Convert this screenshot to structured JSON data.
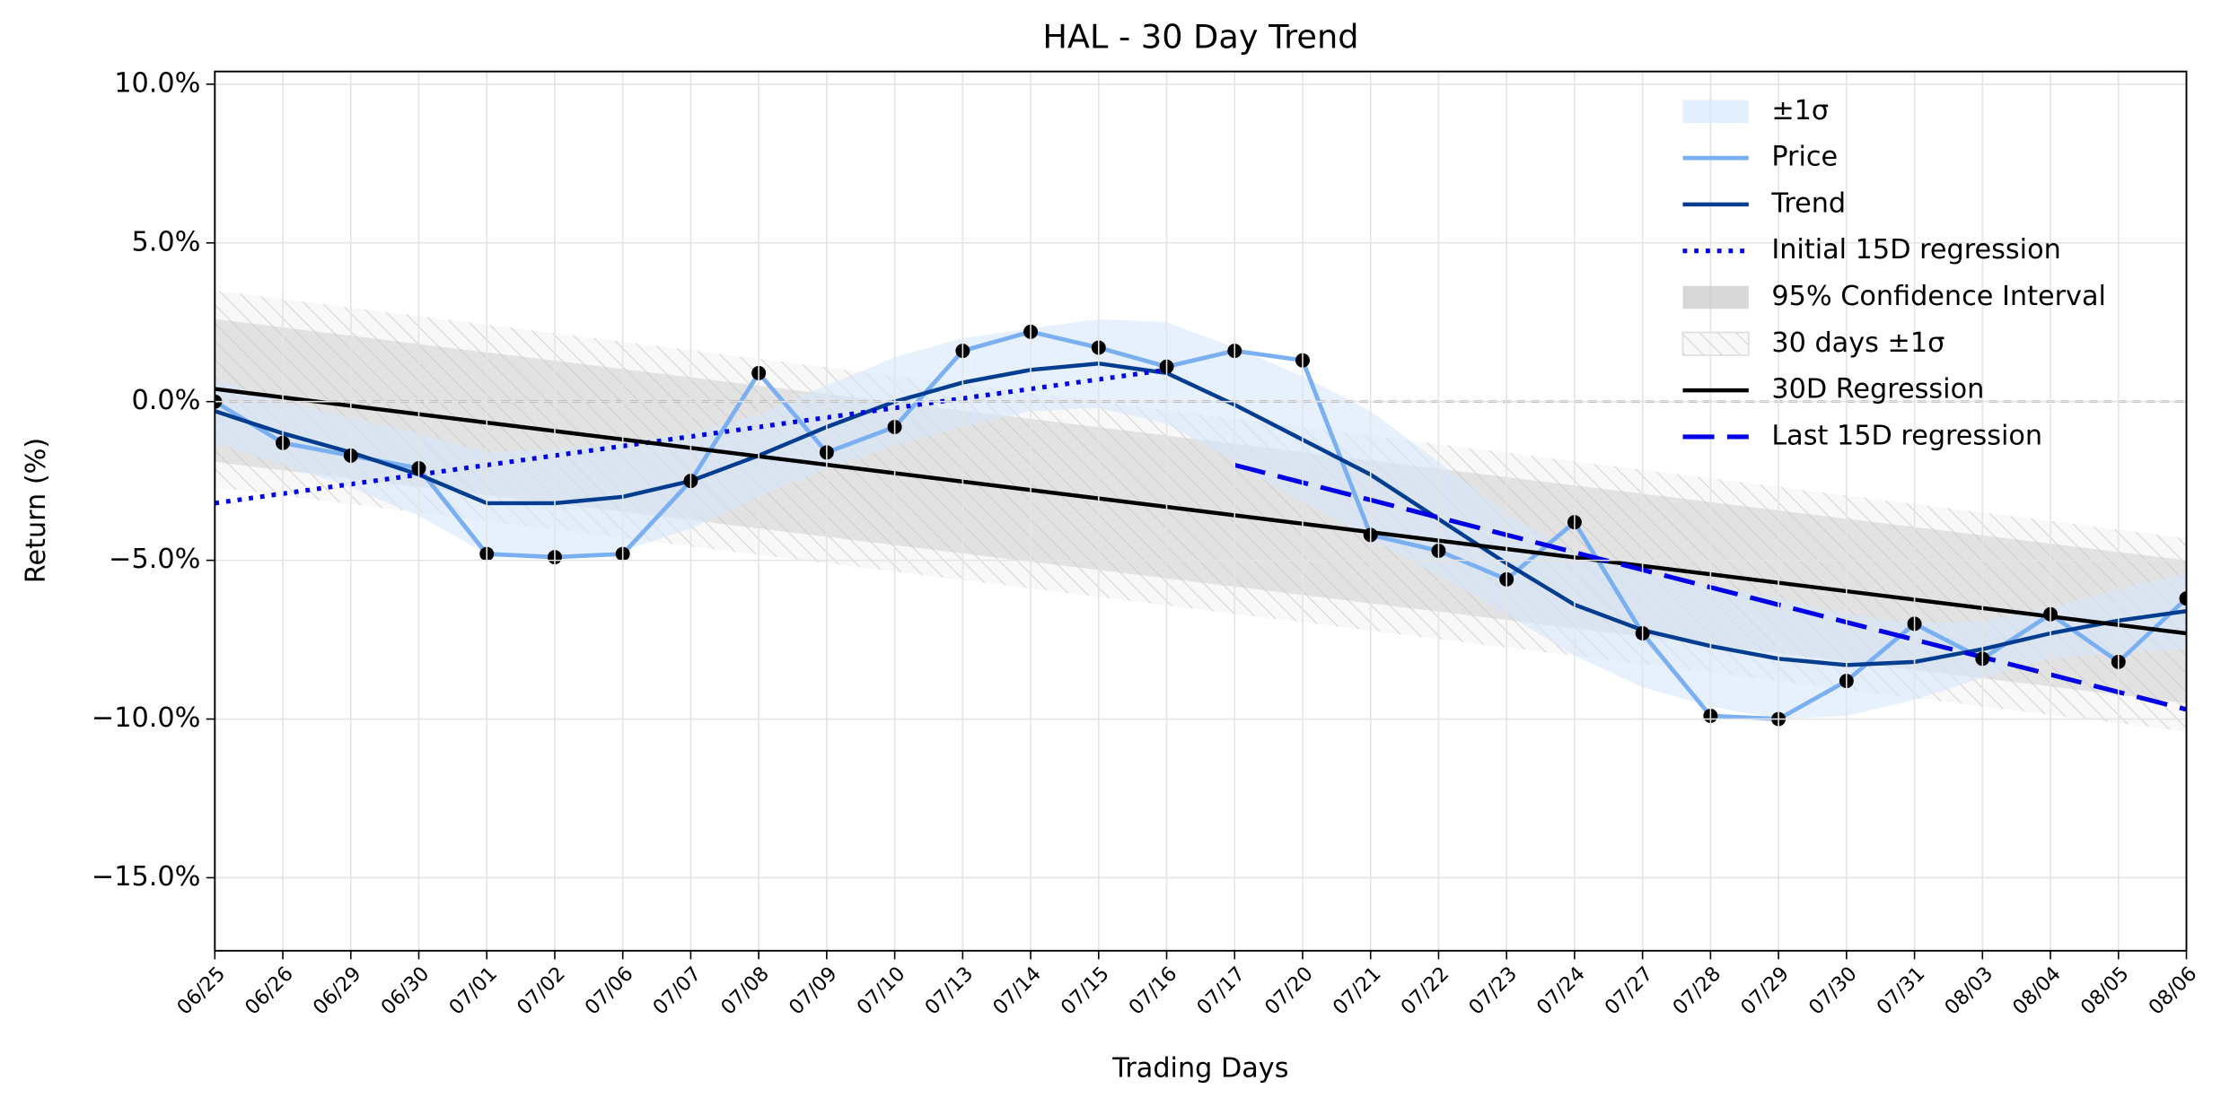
{
  "chart_data": {
    "type": "line",
    "title": "HAL - 30 Day Trend",
    "xlabel": "Trading Days",
    "ylabel": "Return (%)",
    "categories": [
      "06/25",
      "06/26",
      "06/29",
      "06/30",
      "07/01",
      "07/02",
      "07/06",
      "07/07",
      "07/08",
      "07/09",
      "07/10",
      "07/13",
      "07/14",
      "07/15",
      "07/16",
      "07/17",
      "07/20",
      "07/21",
      "07/22",
      "07/23",
      "07/24",
      "07/27",
      "07/28",
      "07/29",
      "07/30",
      "07/31",
      "08/03",
      "08/04",
      "08/05",
      "08/06"
    ],
    "ylim": [
      -17.3,
      10.4
    ],
    "yticks": [
      {
        "value": 10,
        "label": "10.0%"
      },
      {
        "value": 5,
        "label": "5.0%"
      },
      {
        "value": 0,
        "label": "0.0%"
      },
      {
        "value": -5,
        "label": "−5.0%"
      },
      {
        "value": -10,
        "label": "−10.0%"
      },
      {
        "value": -15,
        "label": "−15.0%"
      }
    ],
    "grid": true,
    "legend": "upper right",
    "zero_line": 0,
    "series": [
      {
        "name": "±1σ",
        "kind": "band",
        "color": "#d6e8fc",
        "upper": [
          0.7,
          0.0,
          -0.5,
          -1.0,
          -1.6,
          -1.5,
          -1.3,
          -1.0,
          -0.4,
          0.5,
          1.4,
          2.0,
          2.3,
          2.6,
          2.5,
          1.7,
          0.8,
          -0.3,
          -1.9,
          -3.5,
          -4.8,
          -5.4,
          -5.8,
          -6.2,
          -6.7,
          -7.0,
          -6.9,
          -6.5,
          -5.9,
          -5.4
        ],
        "lower": [
          -1.3,
          -2.0,
          -2.7,
          -3.6,
          -4.8,
          -4.9,
          -4.7,
          -4.0,
          -3.0,
          -2.1,
          -1.4,
          -0.8,
          -0.3,
          -0.2,
          -0.7,
          -1.9,
          -3.2,
          -4.3,
          -5.5,
          -6.7,
          -8.0,
          -9.0,
          -9.6,
          -10.0,
          -9.9,
          -9.4,
          -8.7,
          -8.1,
          -7.9,
          -7.8
        ]
      },
      {
        "name": "Price",
        "kind": "line",
        "color": "#7aaff2",
        "markers": true,
        "values": [
          0.0,
          -1.3,
          -1.7,
          -2.1,
          -4.8,
          -4.9,
          -4.8,
          -2.5,
          0.9,
          -1.6,
          -0.8,
          1.6,
          2.2,
          1.7,
          1.1,
          1.6,
          1.3,
          -4.2,
          -4.7,
          -5.6,
          -3.8,
          -7.3,
          -9.9,
          -10.0,
          -8.8,
          -7.0,
          -8.1,
          -6.7,
          -8.2,
          -6.2
        ]
      },
      {
        "name": "Trend",
        "kind": "line",
        "color": "#003c8f",
        "values": [
          -0.3,
          -1.0,
          -1.6,
          -2.3,
          -3.2,
          -3.2,
          -3.0,
          -2.5,
          -1.7,
          -0.8,
          0.0,
          0.6,
          1.0,
          1.2,
          0.9,
          -0.1,
          -1.2,
          -2.3,
          -3.7,
          -5.1,
          -6.4,
          -7.2,
          -7.7,
          -8.1,
          -8.3,
          -8.2,
          -7.8,
          -7.3,
          -6.9,
          -6.6
        ]
      },
      {
        "name": "Initial 15D regression",
        "kind": "line",
        "style": "dotted",
        "color": "#0000e6",
        "x": [
          "06/25",
          "07/16"
        ],
        "values": [
          -3.2,
          1.0
        ]
      },
      {
        "name": "95% Confidence Interval",
        "kind": "band",
        "color": "#c8c8c8",
        "x": [
          "06/25",
          "08/06"
        ],
        "upper": [
          2.6,
          -5.0
        ],
        "lower": [
          -1.9,
          -9.5
        ]
      },
      {
        "name": "30 days ±1σ",
        "kind": "band",
        "style": "hatched",
        "color": "#d4d4d4",
        "x": [
          "06/25",
          "08/06"
        ],
        "upper": [
          3.5,
          -4.3
        ],
        "lower": [
          -2.7,
          -10.4
        ]
      },
      {
        "name": "30D Regression",
        "kind": "line",
        "color": "#000000",
        "x": [
          "06/25",
          "08/06"
        ],
        "values": [
          0.4,
          -7.3
        ]
      },
      {
        "name": "Last 15D regression",
        "kind": "line",
        "style": "dashed",
        "color": "#0000e6",
        "x": [
          "07/17",
          "08/06"
        ],
        "values": [
          -2.0,
          -9.7
        ]
      }
    ]
  }
}
